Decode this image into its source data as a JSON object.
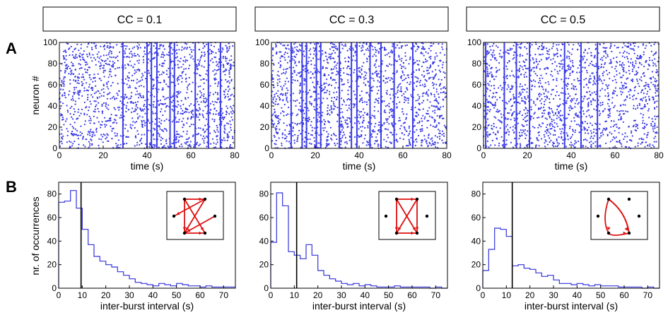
{
  "colors": {
    "spike": "#3a3ae6",
    "hist": "#3333dd",
    "arrow": "#dd1111",
    "axis": "#000000"
  },
  "panel_labels": [
    "A",
    "B"
  ],
  "chart_data": [
    {
      "type": "scatter",
      "panel": "A",
      "column": 0,
      "header": "CC = 0.1",
      "xlabel": "time (s)",
      "ylabel": "neuron #",
      "xlim": [
        0,
        80
      ],
      "ylim": [
        0,
        100
      ],
      "xticks": [
        "0",
        "20",
        "40",
        "60",
        "80"
      ],
      "yticks": [
        "0",
        "20",
        "40",
        "60",
        "80",
        "100"
      ],
      "burst_times": [
        29,
        40,
        42,
        44.5,
        50.5,
        52.5,
        62,
        68,
        73.5
      ],
      "spikes_per_second": 20
    },
    {
      "type": "scatter",
      "panel": "A",
      "column": 1,
      "header": "CC = 0.3",
      "xlabel": "time (s)",
      "ylabel": "",
      "xlim": [
        0,
        80
      ],
      "ylim": [
        0,
        100
      ],
      "xticks": [
        "0",
        "20",
        "40",
        "60",
        "80"
      ],
      "yticks": [
        "0",
        "20",
        "40",
        "60",
        "80",
        "100"
      ],
      "burst_times": [
        9,
        14,
        16,
        20.5,
        22.5,
        31,
        36.5,
        39,
        45,
        50,
        56,
        64.5
      ],
      "spikes_per_second": 20
    },
    {
      "type": "scatter",
      "panel": "A",
      "column": 2,
      "header": "CC = 0.5",
      "xlabel": "time (s)",
      "ylabel": "",
      "xlim": [
        0,
        80
      ],
      "ylim": [
        0,
        100
      ],
      "xticks": [
        "0",
        "20",
        "40",
        "60",
        "80"
      ],
      "yticks": [
        "0",
        "20",
        "40",
        "60",
        "80",
        "100"
      ],
      "burst_times": [
        1,
        9.5,
        15,
        21,
        37,
        44.5,
        52
      ],
      "spikes_per_second": 20
    },
    {
      "type": "bar",
      "panel": "B",
      "column": 0,
      "xlabel": "inter-burst interval (s)",
      "ylabel": "nr. of occurrences",
      "xlim": [
        0,
        75
      ],
      "ylim": [
        0,
        90
      ],
      "xticks": [
        "0",
        "10",
        "20",
        "30",
        "40",
        "50",
        "60",
        "70"
      ],
      "yticks": [
        "0",
        "20",
        "40",
        "60",
        "80"
      ],
      "bin_width": 2.5,
      "values": [
        73,
        74,
        83,
        68,
        50,
        37,
        27,
        23,
        20,
        18,
        14,
        11,
        8,
        5,
        4,
        3,
        2,
        4,
        3,
        2,
        4,
        3,
        2,
        2,
        1,
        2,
        1,
        1,
        1,
        1
      ],
      "marker_x": 9.5
    },
    {
      "type": "bar",
      "panel": "B",
      "column": 1,
      "xlabel": "inter-burst interval (s)",
      "ylabel": "",
      "xlim": [
        0,
        75
      ],
      "ylim": [
        0,
        90
      ],
      "xticks": [
        "0",
        "10",
        "20",
        "30",
        "40",
        "50",
        "60",
        "70"
      ],
      "yticks": [
        "0",
        "20",
        "40",
        "60",
        "80"
      ],
      "bin_width": 2.5,
      "values": [
        39,
        81,
        70,
        31,
        28,
        25,
        37,
        28,
        15,
        11,
        8,
        6,
        4,
        3,
        4,
        2,
        3,
        2,
        1,
        1,
        1,
        2,
        1,
        1,
        1,
        1,
        1,
        0,
        1,
        0
      ],
      "marker_x": 11
    },
    {
      "type": "bar",
      "panel": "B",
      "column": 2,
      "xlabel": "inter-burst interval (s)",
      "ylabel": "",
      "xlim": [
        0,
        75
      ],
      "ylim": [
        0,
        90
      ],
      "xticks": [
        "0",
        "10",
        "20",
        "30",
        "40",
        "50",
        "60",
        "70"
      ],
      "yticks": [
        "0",
        "20",
        "40",
        "60",
        "80"
      ],
      "bin_width": 2.5,
      "values": [
        15,
        33,
        51,
        50,
        44,
        19,
        20,
        17,
        16,
        13,
        10,
        11,
        7,
        4,
        4,
        3,
        4,
        3,
        2,
        3,
        2,
        2,
        2,
        1,
        1,
        1,
        1,
        0,
        1,
        0
      ],
      "marker_x": 12.5
    }
  ]
}
